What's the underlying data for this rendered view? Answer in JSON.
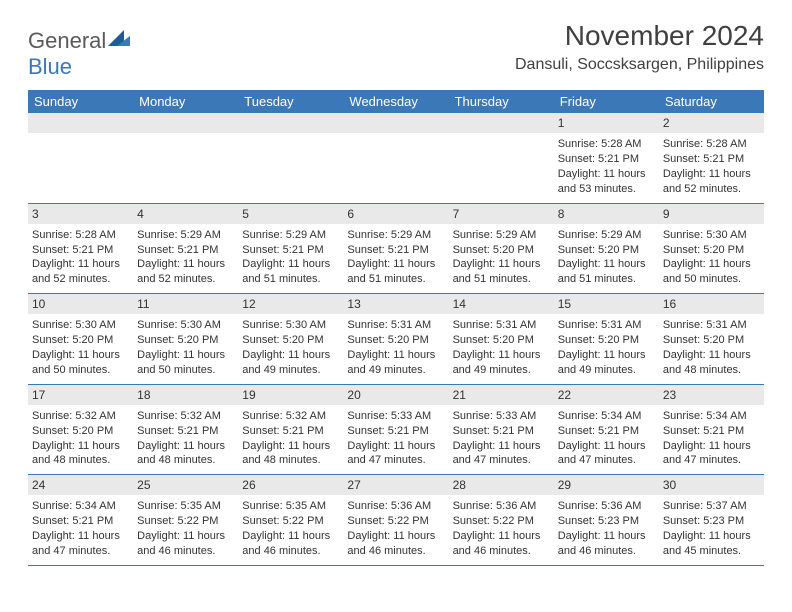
{
  "brand": {
    "word1": "General",
    "word2": "Blue"
  },
  "header": {
    "month_title": "November 2024",
    "location": "Dansuli, Soccsksargen, Philippines"
  },
  "colors": {
    "header_bg": "#3a78b8",
    "header_text": "#ffffff",
    "daynum_bg": "#e9e9e9",
    "rule": "#3a78b8",
    "text": "#333333",
    "background": "#ffffff"
  },
  "day_names": [
    "Sunday",
    "Monday",
    "Tuesday",
    "Wednesday",
    "Thursday",
    "Friday",
    "Saturday"
  ],
  "grid": {
    "week1": {
      "d0": null,
      "d1": null,
      "d2": null,
      "d3": null,
      "d4": null,
      "d5": {
        "num": "1",
        "sunrise": "Sunrise: 5:28 AM",
        "sunset": "Sunset: 5:21 PM",
        "dl1": "Daylight: 11 hours",
        "dl2": "and 53 minutes."
      },
      "d6": {
        "num": "2",
        "sunrise": "Sunrise: 5:28 AM",
        "sunset": "Sunset: 5:21 PM",
        "dl1": "Daylight: 11 hours",
        "dl2": "and 52 minutes."
      }
    },
    "week2": {
      "d0": {
        "num": "3",
        "sunrise": "Sunrise: 5:28 AM",
        "sunset": "Sunset: 5:21 PM",
        "dl1": "Daylight: 11 hours",
        "dl2": "and 52 minutes."
      },
      "d1": {
        "num": "4",
        "sunrise": "Sunrise: 5:29 AM",
        "sunset": "Sunset: 5:21 PM",
        "dl1": "Daylight: 11 hours",
        "dl2": "and 52 minutes."
      },
      "d2": {
        "num": "5",
        "sunrise": "Sunrise: 5:29 AM",
        "sunset": "Sunset: 5:21 PM",
        "dl1": "Daylight: 11 hours",
        "dl2": "and 51 minutes."
      },
      "d3": {
        "num": "6",
        "sunrise": "Sunrise: 5:29 AM",
        "sunset": "Sunset: 5:21 PM",
        "dl1": "Daylight: 11 hours",
        "dl2": "and 51 minutes."
      },
      "d4": {
        "num": "7",
        "sunrise": "Sunrise: 5:29 AM",
        "sunset": "Sunset: 5:20 PM",
        "dl1": "Daylight: 11 hours",
        "dl2": "and 51 minutes."
      },
      "d5": {
        "num": "8",
        "sunrise": "Sunrise: 5:29 AM",
        "sunset": "Sunset: 5:20 PM",
        "dl1": "Daylight: 11 hours",
        "dl2": "and 51 minutes."
      },
      "d6": {
        "num": "9",
        "sunrise": "Sunrise: 5:30 AM",
        "sunset": "Sunset: 5:20 PM",
        "dl1": "Daylight: 11 hours",
        "dl2": "and 50 minutes."
      }
    },
    "week3": {
      "d0": {
        "num": "10",
        "sunrise": "Sunrise: 5:30 AM",
        "sunset": "Sunset: 5:20 PM",
        "dl1": "Daylight: 11 hours",
        "dl2": "and 50 minutes."
      },
      "d1": {
        "num": "11",
        "sunrise": "Sunrise: 5:30 AM",
        "sunset": "Sunset: 5:20 PM",
        "dl1": "Daylight: 11 hours",
        "dl2": "and 50 minutes."
      },
      "d2": {
        "num": "12",
        "sunrise": "Sunrise: 5:30 AM",
        "sunset": "Sunset: 5:20 PM",
        "dl1": "Daylight: 11 hours",
        "dl2": "and 49 minutes."
      },
      "d3": {
        "num": "13",
        "sunrise": "Sunrise: 5:31 AM",
        "sunset": "Sunset: 5:20 PM",
        "dl1": "Daylight: 11 hours",
        "dl2": "and 49 minutes."
      },
      "d4": {
        "num": "14",
        "sunrise": "Sunrise: 5:31 AM",
        "sunset": "Sunset: 5:20 PM",
        "dl1": "Daylight: 11 hours",
        "dl2": "and 49 minutes."
      },
      "d5": {
        "num": "15",
        "sunrise": "Sunrise: 5:31 AM",
        "sunset": "Sunset: 5:20 PM",
        "dl1": "Daylight: 11 hours",
        "dl2": "and 49 minutes."
      },
      "d6": {
        "num": "16",
        "sunrise": "Sunrise: 5:31 AM",
        "sunset": "Sunset: 5:20 PM",
        "dl1": "Daylight: 11 hours",
        "dl2": "and 48 minutes."
      }
    },
    "week4": {
      "d0": {
        "num": "17",
        "sunrise": "Sunrise: 5:32 AM",
        "sunset": "Sunset: 5:20 PM",
        "dl1": "Daylight: 11 hours",
        "dl2": "and 48 minutes."
      },
      "d1": {
        "num": "18",
        "sunrise": "Sunrise: 5:32 AM",
        "sunset": "Sunset: 5:21 PM",
        "dl1": "Daylight: 11 hours",
        "dl2": "and 48 minutes."
      },
      "d2": {
        "num": "19",
        "sunrise": "Sunrise: 5:32 AM",
        "sunset": "Sunset: 5:21 PM",
        "dl1": "Daylight: 11 hours",
        "dl2": "and 48 minutes."
      },
      "d3": {
        "num": "20",
        "sunrise": "Sunrise: 5:33 AM",
        "sunset": "Sunset: 5:21 PM",
        "dl1": "Daylight: 11 hours",
        "dl2": "and 47 minutes."
      },
      "d4": {
        "num": "21",
        "sunrise": "Sunrise: 5:33 AM",
        "sunset": "Sunset: 5:21 PM",
        "dl1": "Daylight: 11 hours",
        "dl2": "and 47 minutes."
      },
      "d5": {
        "num": "22",
        "sunrise": "Sunrise: 5:34 AM",
        "sunset": "Sunset: 5:21 PM",
        "dl1": "Daylight: 11 hours",
        "dl2": "and 47 minutes."
      },
      "d6": {
        "num": "23",
        "sunrise": "Sunrise: 5:34 AM",
        "sunset": "Sunset: 5:21 PM",
        "dl1": "Daylight: 11 hours",
        "dl2": "and 47 minutes."
      }
    },
    "week5": {
      "d0": {
        "num": "24",
        "sunrise": "Sunrise: 5:34 AM",
        "sunset": "Sunset: 5:21 PM",
        "dl1": "Daylight: 11 hours",
        "dl2": "and 47 minutes."
      },
      "d1": {
        "num": "25",
        "sunrise": "Sunrise: 5:35 AM",
        "sunset": "Sunset: 5:22 PM",
        "dl1": "Daylight: 11 hours",
        "dl2": "and 46 minutes."
      },
      "d2": {
        "num": "26",
        "sunrise": "Sunrise: 5:35 AM",
        "sunset": "Sunset: 5:22 PM",
        "dl1": "Daylight: 11 hours",
        "dl2": "and 46 minutes."
      },
      "d3": {
        "num": "27",
        "sunrise": "Sunrise: 5:36 AM",
        "sunset": "Sunset: 5:22 PM",
        "dl1": "Daylight: 11 hours",
        "dl2": "and 46 minutes."
      },
      "d4": {
        "num": "28",
        "sunrise": "Sunrise: 5:36 AM",
        "sunset": "Sunset: 5:22 PM",
        "dl1": "Daylight: 11 hours",
        "dl2": "and 46 minutes."
      },
      "d5": {
        "num": "29",
        "sunrise": "Sunrise: 5:36 AM",
        "sunset": "Sunset: 5:23 PM",
        "dl1": "Daylight: 11 hours",
        "dl2": "and 46 minutes."
      },
      "d6": {
        "num": "30",
        "sunrise": "Sunrise: 5:37 AM",
        "sunset": "Sunset: 5:23 PM",
        "dl1": "Daylight: 11 hours",
        "dl2": "and 45 minutes."
      }
    }
  }
}
